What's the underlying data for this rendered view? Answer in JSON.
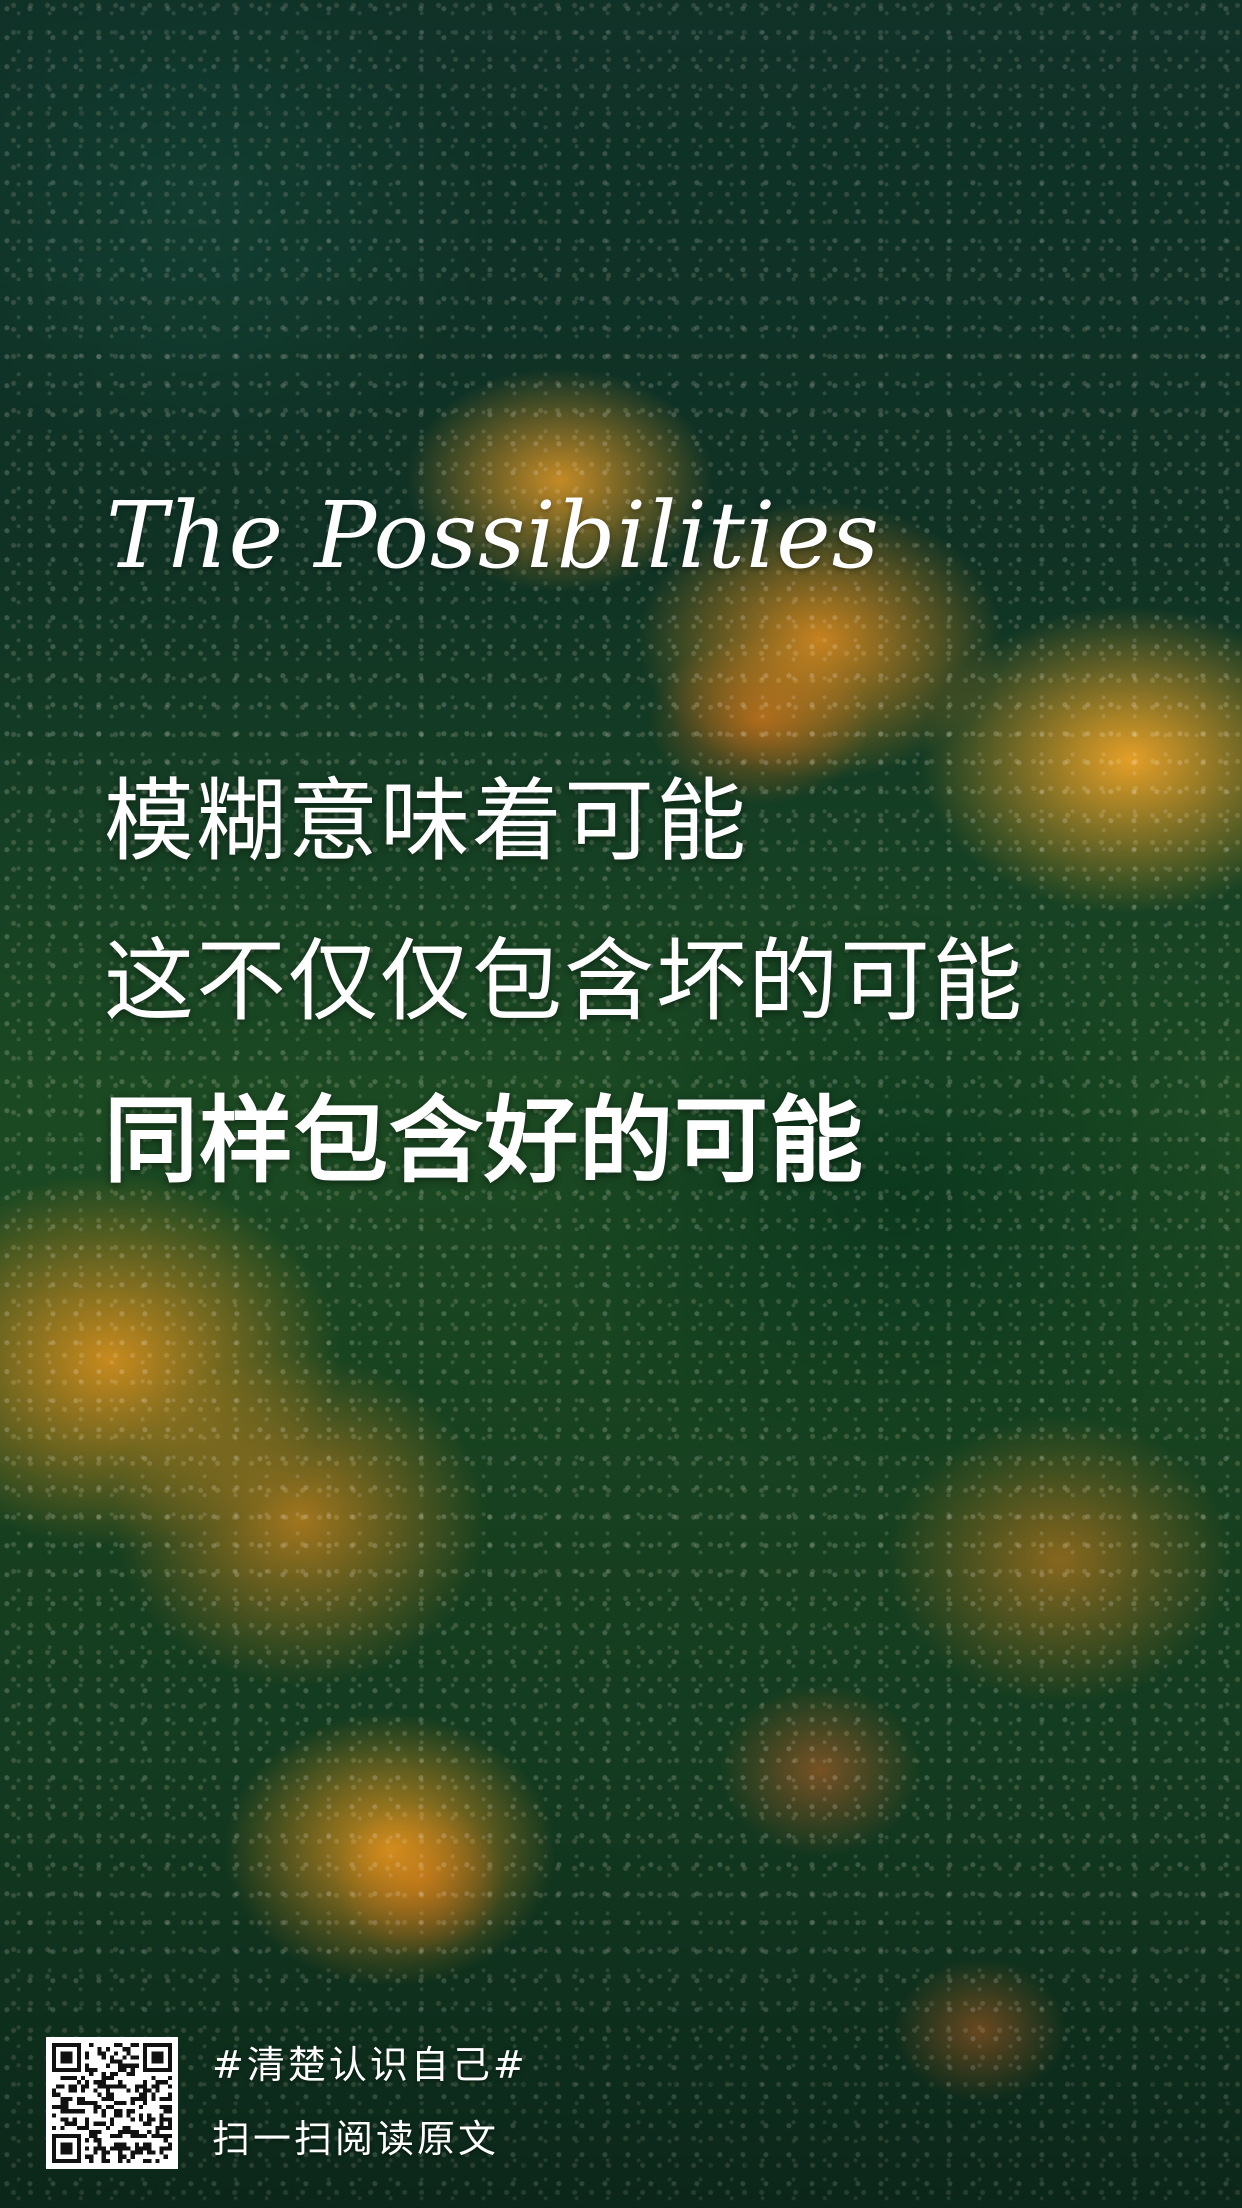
{
  "poster": {
    "script_title": "The Possibilities",
    "lines": [
      "模糊意味着可能",
      "这不仅仅包含坏的可能",
      "同样包含好的可能"
    ]
  },
  "footer": {
    "hashtag": "#清楚认识自己#",
    "scan_text": "扫一扫阅读原文",
    "qr_icon": "qr-code-icon"
  },
  "colors": {
    "text": "#ffffff",
    "background_green": "#123a2e",
    "bloom_orange": "#f0a028"
  }
}
